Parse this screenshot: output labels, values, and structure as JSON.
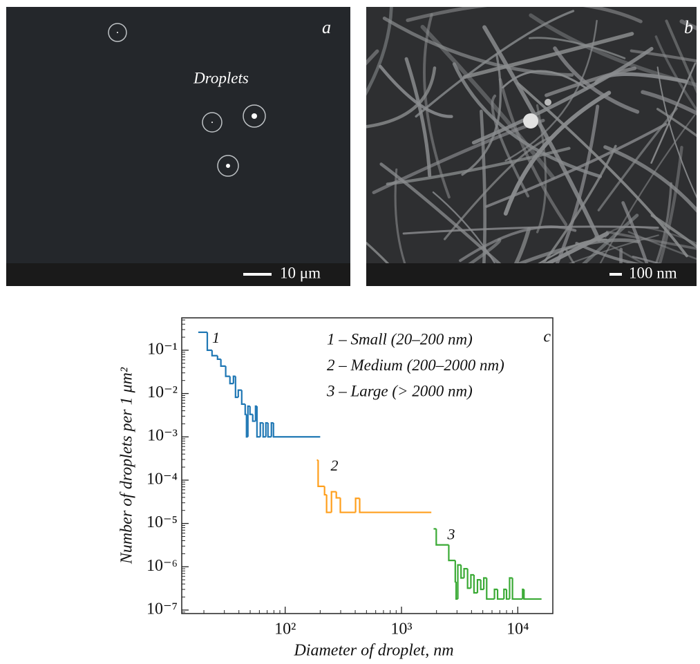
{
  "panels": [
    {
      "label": "a",
      "annotation": "Droplets",
      "scale_bar": "10 μm"
    },
    {
      "label": "b",
      "scale_bar": "100 nm"
    }
  ],
  "chart_data": {
    "type": "step",
    "panel_label": "c",
    "xlabel": "Diameter of droplet, nm",
    "ylabel": "Number of droplets per 1 μm²",
    "xscale": "log",
    "yscale": "log",
    "xlim": [
      12.9,
      20000
    ],
    "ylim": [
      8.3e-08,
      0.56
    ],
    "xticks": [
      {
        "value": 100,
        "label": "10²"
      },
      {
        "value": 1000,
        "label": "10³"
      },
      {
        "value": 10000,
        "label": "10⁴"
      }
    ],
    "yticks": [
      {
        "value": 1e-07,
        "label": "10⁻⁷"
      },
      {
        "value": 1e-06,
        "label": "10⁻⁶"
      },
      {
        "value": 1e-05,
        "label": "10⁻⁵"
      },
      {
        "value": 0.0001,
        "label": "10⁻⁴"
      },
      {
        "value": 0.001,
        "label": "10⁻³"
      },
      {
        "value": 0.01,
        "label": "10⁻²"
      },
      {
        "value": 0.1,
        "label": "10⁻¹"
      }
    ],
    "series": [
      {
        "name": "1 – Small (20–200 nm)",
        "label": "1",
        "color": "#1f77b4",
        "x": [
          17.9,
          21.4,
          23.5,
          26.2,
          28.0,
          30.8,
          33.5,
          35.9,
          37.4,
          39.5,
          42.3,
          45.3,
          46.5,
          47.8,
          49.8,
          52.6,
          55.6,
          57.2,
          61.1,
          64.6,
          68.2,
          71.1,
          76.1,
          79.3,
          200
        ],
        "values": [
          0.26,
          0.1,
          0.075,
          0.062,
          0.043,
          0.025,
          0.017,
          0.025,
          0.0082,
          0.012,
          0.0057,
          0.0033,
          0.001,
          0.0051,
          0.0033,
          0.0023,
          0.0051,
          0.001,
          0.0021,
          0.001,
          0.0021,
          0.001,
          0.0021,
          0.001,
          0.001
        ]
      },
      {
        "name": "2 – Medium (200–2000 nm)",
        "label": "2",
        "color": "#ff9f1c",
        "x": [
          187,
          192,
          218,
          227,
          250,
          275,
          298,
          403,
          437,
          1805
        ],
        "values": [
          0.00029,
          7.2e-05,
          4.6e-05,
          1.8e-05,
          5.4e-05,
          3.9e-05,
          1.8e-05,
          3.8e-05,
          1.8e-05,
          1.8e-05
        ]
      },
      {
        "name": "3 – Large (> 2000 nm)",
        "label": "3",
        "color": "#3aaa35",
        "x": [
          1888,
          1990,
          2550,
          2900,
          2950,
          3050,
          3250,
          3450,
          3700,
          3950,
          4200,
          4500,
          4800,
          5100,
          5400,
          6300,
          6700,
          7600,
          8000,
          8500,
          9000,
          11000,
          11300,
          16000
        ],
        "values": [
          7.5e-06,
          3.2e-06,
          1.4e-06,
          4.5e-07,
          1.8e-07,
          1.1e-06,
          5.5e-07,
          9e-07,
          3.2e-07,
          6.5e-07,
          2.5e-07,
          5e-07,
          3e-07,
          5.5e-07,
          1.8e-07,
          3e-07,
          1.8e-07,
          3e-07,
          1.8e-07,
          5.5e-07,
          1.8e-07,
          3e-07,
          1.8e-07,
          1.8e-07
        ]
      }
    ]
  }
}
